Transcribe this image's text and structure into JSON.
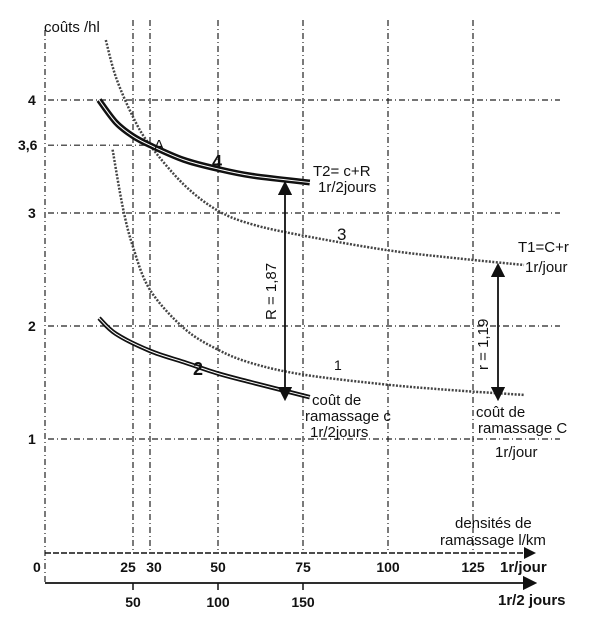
{
  "chart_data": {
    "type": "line",
    "ylabel": "coûts /hl",
    "xlabel": "densités de ramassage l/km",
    "xlabel_line1": "densités de",
    "xlabel_line2": "ramassage l/km",
    "ylim": [
      0,
      4.5
    ],
    "xlim": [
      0,
      150
    ],
    "yticks": [
      {
        "value": 4,
        "label": "4"
      },
      {
        "value": 3.6,
        "label": "3,6"
      },
      {
        "value": 3,
        "label": "3"
      },
      {
        "value": 2,
        "label": "2"
      },
      {
        "value": 1,
        "label": "1"
      }
    ],
    "x_origin_label": "0",
    "xaxis_daily": {
      "label": "1r/jour",
      "ticks": [
        {
          "value": 25,
          "label": "25"
        },
        {
          "value": 30,
          "label": "30"
        },
        {
          "value": 50,
          "label": "50"
        },
        {
          "value": 75,
          "label": "75"
        },
        {
          "value": 100,
          "label": "100"
        },
        {
          "value": 125,
          "label": "125"
        }
      ]
    },
    "xaxis_two_days": {
      "label": "1r/2 jours",
      "ticks": [
        {
          "value": 25,
          "label": "50"
        },
        {
          "value": 50,
          "label": "100"
        },
        {
          "value": 75,
          "label": "150"
        }
      ]
    },
    "series": [
      {
        "name": "1",
        "style": "dotted",
        "label_lines": [
          "coût de",
          "ramassage C",
          "1r/jour"
        ],
        "x": [
          19,
          22,
          25,
          30,
          40,
          50,
          60,
          75,
          100,
          120,
          140
        ],
        "y": [
          3.56,
          3.05,
          2.7,
          2.32,
          1.98,
          1.79,
          1.67,
          1.57,
          1.48,
          1.43,
          1.39
        ]
      },
      {
        "name": "2",
        "style": "double",
        "label_lines": [
          "coût de",
          "ramassage c",
          "1r/2jours"
        ],
        "x": [
          15,
          20,
          30,
          40,
          50,
          60,
          77
        ],
        "y": [
          2.07,
          1.93,
          1.78,
          1.68,
          1.58,
          1.5,
          1.37
        ]
      },
      {
        "name": "3",
        "style": "dotted",
        "label_lines": [
          "T1=C+r",
          "1r/jour"
        ],
        "x": [
          17,
          20,
          25,
          30,
          40,
          50,
          60,
          75,
          100,
          120,
          140
        ],
        "y": [
          4.53,
          4.2,
          3.85,
          3.6,
          3.25,
          3.02,
          2.9,
          2.8,
          2.67,
          2.6,
          2.54
        ]
      },
      {
        "name": "4",
        "style": "double-thick",
        "label_lines": [
          "T2= c+R",
          "1r/2jours"
        ],
        "x": [
          15,
          20,
          25,
          30,
          40,
          50,
          60,
          77
        ],
        "y": [
          4.0,
          3.8,
          3.68,
          3.6,
          3.47,
          3.39,
          3.33,
          3.27
        ]
      }
    ],
    "annotations": [
      {
        "text": "A",
        "x": 30,
        "y": 3.6
      },
      {
        "text": "R = 1,87",
        "x": 70,
        "y_from": 1.37,
        "y_to": 3.27
      },
      {
        "text": "r = 1,19",
        "x": 132,
        "y_from": 1.38,
        "y_to": 2.56
      }
    ]
  }
}
